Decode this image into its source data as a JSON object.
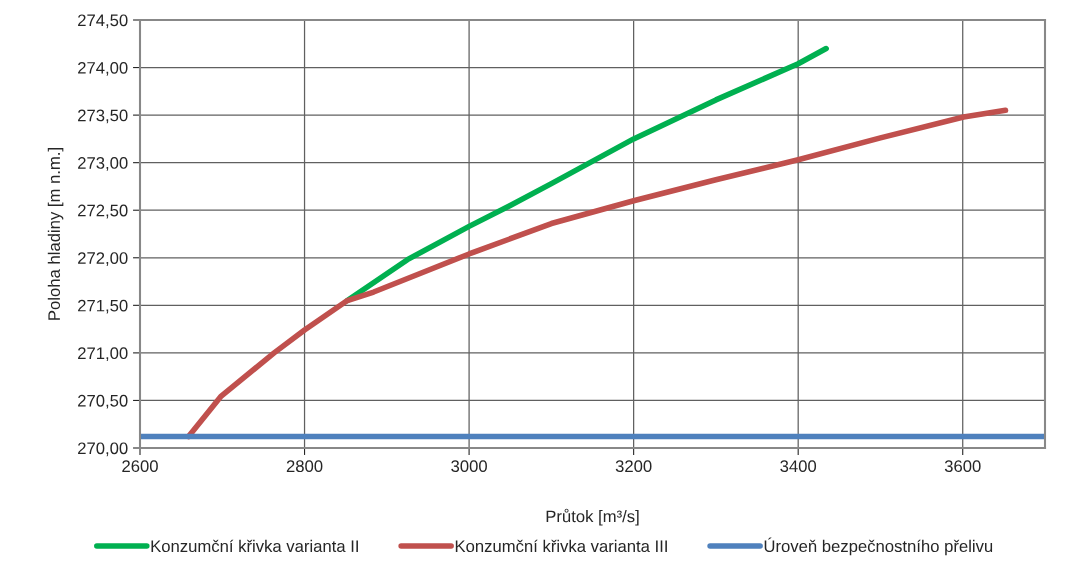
{
  "chart_data": {
    "type": "line",
    "xlabel": "Průtok [m³/s]",
    "ylabel": "Poloha hladiny [m n.m.]",
    "xlim": [
      2600,
      3700
    ],
    "xticks": [
      2600,
      2800,
      3000,
      3200,
      3400,
      3600
    ],
    "ylim": [
      270,
      274.5
    ],
    "yticks": [
      {
        "value": 270,
        "label": "270,00"
      },
      {
        "value": 270.5,
        "label": "270,50"
      },
      {
        "value": 271,
        "label": "271,00"
      },
      {
        "value": 271.5,
        "label": "271,50"
      },
      {
        "value": 272,
        "label": "272,00"
      },
      {
        "value": 272.5,
        "label": "272,50"
      },
      {
        "value": 273,
        "label": "273,00"
      },
      {
        "value": 273.5,
        "label": "273,50"
      },
      {
        "value": 274,
        "label": "274,00"
      },
      {
        "value": 274.5,
        "label": "274,50"
      }
    ],
    "grid": true,
    "legend": "bottom",
    "marker": "none",
    "line_style": "solid",
    "series": [
      {
        "name": "Konzumční křivka varianta II",
        "color": "#00b050",
        "x": [
          2852,
          2925,
          3000,
          3050,
          3100,
          3200,
          3300,
          3400,
          3434
        ],
        "values": [
          271.55,
          271.98,
          272.33,
          272.55,
          272.78,
          273.25,
          273.66,
          274.04,
          274.2
        ]
      },
      {
        "name": "Konzumční křivka varianta III",
        "color": "#c0504d",
        "x": [
          2659,
          2698,
          2763,
          2800,
          2852,
          2884,
          3000,
          3100,
          3200,
          3300,
          3400,
          3500,
          3601,
          3652
        ],
        "values": [
          270.12,
          270.54,
          271.0,
          271.24,
          271.55,
          271.64,
          272.04,
          272.36,
          272.6,
          272.82,
          273.03,
          273.26,
          273.48,
          273.55
        ]
      },
      {
        "name": "Úroveň bezpečnostního přelivu",
        "color": "#4f81bd",
        "x": [
          2600,
          3700
        ],
        "values": [
          270.12,
          270.12
        ]
      }
    ]
  }
}
